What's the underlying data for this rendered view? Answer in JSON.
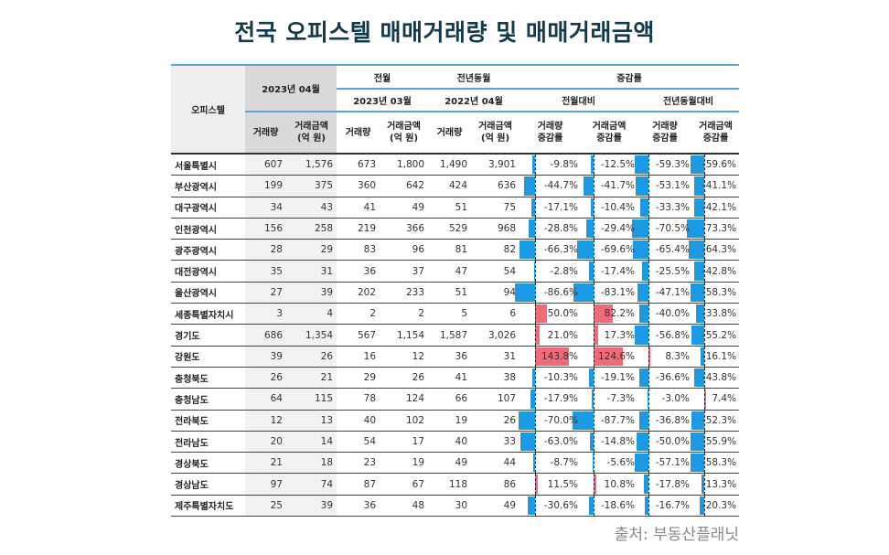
{
  "title": "전국 오피스텔 매매거래량 및 매매거래금액",
  "source": "출처: 부동산플래닛",
  "colors": {
    "negative": "#1a9ae4",
    "positive": "#f06a7a",
    "header_rule": "#5aa6d6"
  },
  "headers": {
    "region": "오피스텔",
    "current": "2023년 04월",
    "prev_month": "전월",
    "prev_year": "전년동월",
    "change": "증감률",
    "prev_month_date": "2023년 03월",
    "prev_year_date": "2022년 04월",
    "mom": "전월대비",
    "yoy": "전년동월대비",
    "volume": "거래량",
    "amount_1": "거래금액",
    "amount_2": "(억 원)",
    "vol_change_1": "거래량",
    "vol_change_2": "증감률",
    "amt_change_1": "거래금액",
    "amt_change_2": "증감률"
  },
  "chart_data": {
    "type": "table",
    "columns": [
      "오피스텔",
      "2023년 04월 거래량",
      "2023년 04월 거래금액(억 원)",
      "2023년 03월 거래량",
      "2023년 03월 거래금액(억 원)",
      "2022년 04월 거래량",
      "2022년 04월 거래금액(억 원)",
      "전월대비 거래량 증감률",
      "전월대비 거래금액 증감률",
      "전년동월대비 거래량 증감률",
      "전년동월대비 거래금액 증감률"
    ],
    "rows": [
      [
        "서울특별시",
        "607",
        "1,576",
        "673",
        "1,800",
        "1,490",
        "3,901",
        "-9.8%",
        "-12.5%",
        "-59.3%",
        "-59.6%"
      ],
      [
        "부산광역시",
        "199",
        "375",
        "360",
        "642",
        "424",
        "636",
        "-44.7%",
        "-41.7%",
        "-53.1%",
        "-41.1%"
      ],
      [
        "대구광역시",
        "34",
        "43",
        "41",
        "49",
        "51",
        "75",
        "-17.1%",
        "-10.4%",
        "-33.3%",
        "-42.1%"
      ],
      [
        "인천광역시",
        "156",
        "258",
        "219",
        "366",
        "529",
        "968",
        "-28.8%",
        "-29.4%",
        "-70.5%",
        "-73.3%"
      ],
      [
        "광주광역시",
        "28",
        "29",
        "83",
        "96",
        "81",
        "82",
        "-66.3%",
        "-69.6%",
        "-65.4%",
        "-64.3%"
      ],
      [
        "대전광역시",
        "35",
        "31",
        "36",
        "37",
        "47",
        "54",
        "-2.8%",
        "-17.4%",
        "-25.5%",
        "-42.8%"
      ],
      [
        "울산광역시",
        "27",
        "39",
        "202",
        "233",
        "51",
        "94",
        "-86.6%",
        "-83.1%",
        "-47.1%",
        "-58.3%"
      ],
      [
        "세종특별자치시",
        "3",
        "4",
        "2",
        "2",
        "5",
        "6",
        "50.0%",
        "82.2%",
        "-40.0%",
        "-33.8%"
      ],
      [
        "경기도",
        "686",
        "1,354",
        "567",
        "1,154",
        "1,587",
        "3,026",
        "21.0%",
        "17.3%",
        "-56.8%",
        "-55.2%"
      ],
      [
        "강원도",
        "39",
        "26",
        "16",
        "12",
        "36",
        "31",
        "143.8%",
        "124.6%",
        "8.3%",
        "-16.1%"
      ],
      [
        "충청북도",
        "26",
        "21",
        "29",
        "26",
        "41",
        "38",
        "-10.3%",
        "-19.1%",
        "-36.6%",
        "-43.8%"
      ],
      [
        "충청남도",
        "64",
        "115",
        "78",
        "124",
        "66",
        "107",
        "-17.9%",
        "-7.3%",
        "-3.0%",
        "7.4%"
      ],
      [
        "전라북도",
        "12",
        "13",
        "40",
        "102",
        "19",
        "26",
        "-70.0%",
        "-87.7%",
        "-36.8%",
        "-52.3%"
      ],
      [
        "전라남도",
        "20",
        "14",
        "54",
        "17",
        "40",
        "33",
        "-63.0%",
        "-14.8%",
        "-50.0%",
        "-55.9%"
      ],
      [
        "경상북도",
        "21",
        "18",
        "23",
        "19",
        "49",
        "44",
        "-8.7%",
        "-5.6%",
        "-57.1%",
        "-58.3%"
      ],
      [
        "경상남도",
        "97",
        "74",
        "87",
        "67",
        "118",
        "86",
        "11.5%",
        "10.8%",
        "-17.8%",
        "-13.3%"
      ],
      [
        "제주특별자치도",
        "25",
        "39",
        "36",
        "48",
        "30",
        "49",
        "-30.6%",
        "-18.6%",
        "-16.7%",
        "-20.3%"
      ]
    ]
  }
}
